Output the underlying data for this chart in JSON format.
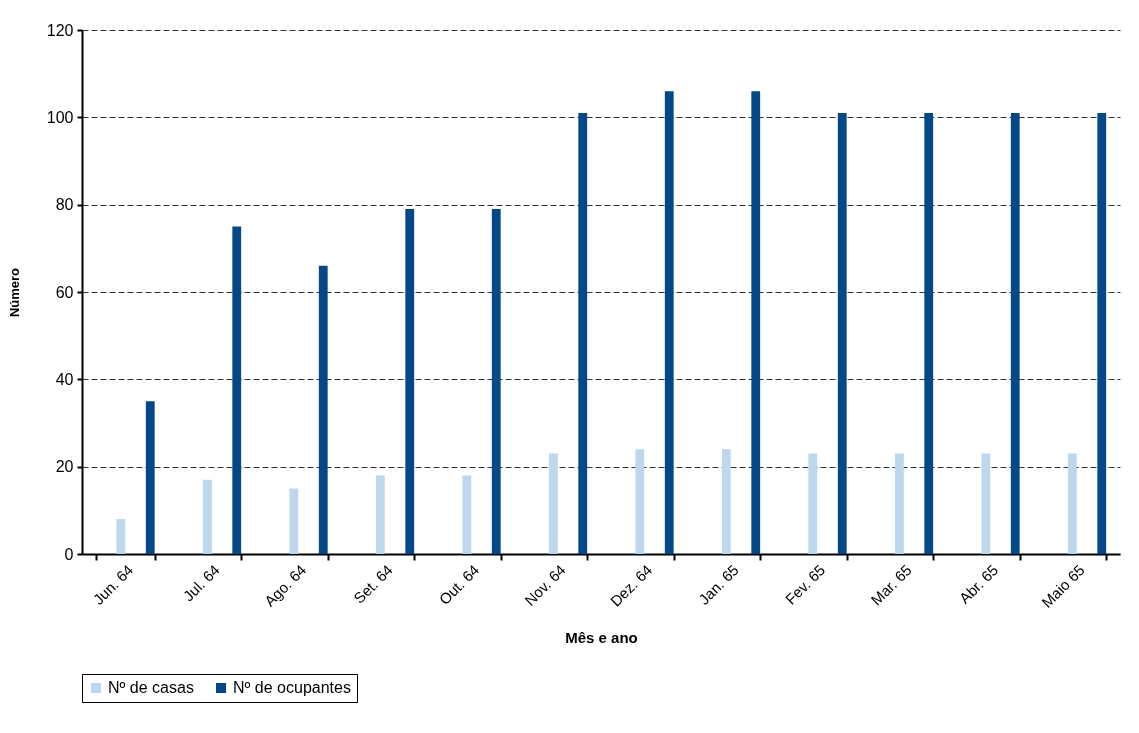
{
  "chart_data": {
    "type": "bar",
    "xlabel": "Mês e ano",
    "ylabel": "Número",
    "categories": [
      "Jun. 64",
      "Jul. 64",
      "Ago. 64",
      "Set. 64",
      "Out. 64",
      "Nov. 64",
      "Dez. 64",
      "Jan. 65",
      "Fev. 65",
      "Mar. 65",
      "Abr. 65",
      "Maio 65"
    ],
    "series": [
      {
        "name": "Nº de  casas",
        "color": "#bdd7ee",
        "values": [
          8,
          17,
          15,
          18,
          18,
          23,
          24,
          24,
          23,
          23,
          23,
          23
        ]
      },
      {
        "name": "Nº de ocupantes",
        "color": "#044887",
        "values": [
          35,
          75,
          66,
          79,
          79,
          101,
          106,
          106,
          101,
          101,
          101,
          101
        ]
      }
    ],
    "ylim": [
      0,
      120
    ],
    "yticks": [
      0,
      20,
      40,
      60,
      80,
      100,
      120
    ],
    "grid": "y",
    "legend": "bottom"
  }
}
